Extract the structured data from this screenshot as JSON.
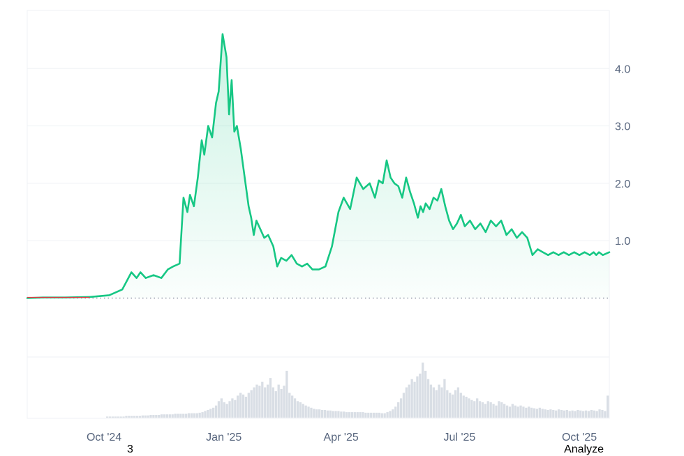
{
  "footer": {
    "left_text": "3",
    "right_text": "Analyze"
  },
  "chart_data": {
    "type": "area",
    "title": "",
    "xlabel": "",
    "ylabel": "",
    "x_tick_labels": [
      "Oct '24",
      "Jan '25",
      "Apr '25",
      "Jul '25",
      "Oct '25"
    ],
    "x_tick_dates": [
      "2024-10-01",
      "2025-01-01",
      "2025-04-01",
      "2025-07-01",
      "2025-10-01"
    ],
    "y_tick_labels": [
      "1.0",
      "2.0",
      "3.0",
      "4.0"
    ],
    "y_ticks": [
      1.0,
      2.0,
      3.0,
      4.0
    ],
    "ylim": [
      -0.9,
      4.9
    ],
    "xlim": [
      "2024-08-03",
      "2025-10-24"
    ],
    "baseline": 0.0,
    "grid": true,
    "colors": {
      "line": "#16c784",
      "below_baseline": "#ea3943",
      "grid": "#eff2f5",
      "baseline": "#777e90",
      "volume": "#d9dee5"
    },
    "series": [
      {
        "x": [
          "2024-08-03",
          "2024-08-15",
          "2024-09-01",
          "2024-09-20",
          "2024-10-05",
          "2024-10-15",
          "2024-10-22",
          "2024-10-26",
          "2024-10-29",
          "2024-11-02",
          "2024-11-08",
          "2024-11-14",
          "2024-11-19",
          "2024-11-23",
          "2024-11-28",
          "2024-12-01",
          "2024-12-04",
          "2024-12-06",
          "2024-12-09",
          "2024-12-12",
          "2024-12-15",
          "2024-12-17",
          "2024-12-20",
          "2024-12-23",
          "2024-12-26",
          "2024-12-28",
          "2024-12-31",
          "2025-01-03",
          "2025-01-05",
          "2025-01-07",
          "2025-01-09",
          "2025-01-11",
          "2025-01-14",
          "2025-01-17",
          "2025-01-20",
          "2025-01-22",
          "2025-01-24",
          "2025-01-26",
          "2025-01-29",
          "2025-02-01",
          "2025-02-04",
          "2025-02-08",
          "2025-02-11",
          "2025-02-14",
          "2025-02-18",
          "2025-02-22",
          "2025-02-26",
          "2025-03-02",
          "2025-03-06",
          "2025-03-10",
          "2025-03-15",
          "2025-03-20",
          "2025-03-25",
          "2025-03-30",
          "2025-04-03",
          "2025-04-08",
          "2025-04-13",
          "2025-04-18",
          "2025-04-23",
          "2025-04-27",
          "2025-04-30",
          "2025-05-03",
          "2025-05-06",
          "2025-05-09",
          "2025-05-12",
          "2025-05-15",
          "2025-05-18",
          "2025-05-21",
          "2025-05-24",
          "2025-05-27",
          "2025-05-30",
          "2025-06-01",
          "2025-06-03",
          "2025-06-05",
          "2025-06-08",
          "2025-06-11",
          "2025-06-14",
          "2025-06-17",
          "2025-06-20",
          "2025-06-23",
          "2025-06-26",
          "2025-06-29",
          "2025-07-02",
          "2025-07-05",
          "2025-07-09",
          "2025-07-13",
          "2025-07-17",
          "2025-07-21",
          "2025-07-25",
          "2025-07-29",
          "2025-08-02",
          "2025-08-06",
          "2025-08-10",
          "2025-08-14",
          "2025-08-18",
          "2025-08-22",
          "2025-08-26",
          "2025-08-30",
          "2025-09-03",
          "2025-09-07",
          "2025-09-11",
          "2025-09-15",
          "2025-09-19",
          "2025-09-23",
          "2025-09-27",
          "2025-10-01",
          "2025-10-05",
          "2025-10-09",
          "2025-10-12",
          "2025-10-14",
          "2025-10-16",
          "2025-10-19",
          "2025-10-24"
        ],
        "y": [
          0.0,
          0.01,
          0.01,
          0.02,
          0.05,
          0.15,
          0.45,
          0.35,
          0.45,
          0.35,
          0.4,
          0.35,
          0.5,
          0.55,
          0.6,
          1.75,
          1.5,
          1.8,
          1.6,
          2.1,
          2.75,
          2.5,
          3.0,
          2.8,
          3.4,
          3.6,
          4.6,
          4.2,
          3.2,
          3.8,
          2.9,
          3.0,
          2.6,
          2.1,
          1.6,
          1.4,
          1.1,
          1.35,
          1.2,
          1.05,
          1.1,
          0.9,
          0.55,
          0.7,
          0.65,
          0.75,
          0.6,
          0.55,
          0.6,
          0.5,
          0.5,
          0.55,
          0.9,
          1.5,
          1.75,
          1.55,
          2.1,
          1.9,
          2.0,
          1.75,
          2.05,
          2.0,
          2.4,
          2.1,
          2.0,
          1.95,
          1.75,
          2.1,
          1.85,
          1.65,
          1.4,
          1.6,
          1.5,
          1.65,
          1.55,
          1.75,
          1.7,
          1.9,
          1.6,
          1.35,
          1.2,
          1.3,
          1.45,
          1.25,
          1.35,
          1.2,
          1.3,
          1.15,
          1.35,
          1.25,
          1.35,
          1.1,
          1.2,
          1.05,
          1.15,
          1.05,
          0.75,
          0.85,
          0.8,
          0.75,
          0.8,
          0.75,
          0.8,
          0.75,
          0.8,
          0.75,
          0.8,
          0.75,
          0.8,
          0.75,
          0.8,
          0.75,
          0.8
        ]
      }
    ],
    "volume_shape": [
      0,
      0,
      0,
      0,
      0,
      0,
      0,
      0,
      0,
      0,
      0,
      0,
      0,
      0,
      0,
      0,
      0,
      0,
      0,
      0,
      0,
      0,
      0,
      0,
      0,
      0,
      0,
      0,
      0,
      0.02,
      0.02,
      0.02,
      0.02,
      0.02,
      0.02,
      0.02,
      0.03,
      0.03,
      0.03,
      0.03,
      0.03,
      0.03,
      0.04,
      0.04,
      0.04,
      0.05,
      0.05,
      0.05,
      0.05,
      0.06,
      0.06,
      0.06,
      0.06,
      0.06,
      0.07,
      0.07,
      0.07,
      0.07,
      0.07,
      0.08,
      0.08,
      0.08,
      0.08,
      0.09,
      0.1,
      0.12,
      0.14,
      0.16,
      0.18,
      0.22,
      0.3,
      0.35,
      0.28,
      0.25,
      0.3,
      0.35,
      0.32,
      0.4,
      0.45,
      0.42,
      0.38,
      0.45,
      0.5,
      0.55,
      0.6,
      0.58,
      0.65,
      0.55,
      0.6,
      0.72,
      0.55,
      0.48,
      0.6,
      0.52,
      0.58,
      0.85,
      0.45,
      0.4,
      0.35,
      0.3,
      0.28,
      0.25,
      0.22,
      0.2,
      0.18,
      0.16,
      0.15,
      0.15,
      0.14,
      0.14,
      0.13,
      0.13,
      0.12,
      0.12,
      0.12,
      0.11,
      0.11,
      0.1,
      0.1,
      0.1,
      0.1,
      0.1,
      0.1,
      0.1,
      0.09,
      0.09,
      0.09,
      0.09,
      0.09,
      0.09,
      0.08,
      0.08,
      0.1,
      0.12,
      0.15,
      0.2,
      0.28,
      0.35,
      0.45,
      0.55,
      0.6,
      0.7,
      0.65,
      0.75,
      0.8,
      1.0,
      0.85,
      0.7,
      0.6,
      0.55,
      0.5,
      0.6,
      0.55,
      0.7,
      0.5,
      0.45,
      0.42,
      0.5,
      0.55,
      0.45,
      0.4,
      0.38,
      0.35,
      0.32,
      0.3,
      0.35,
      0.3,
      0.28,
      0.25,
      0.3,
      0.28,
      0.25,
      0.22,
      0.3,
      0.28,
      0.25,
      0.22,
      0.2,
      0.25,
      0.22,
      0.2,
      0.22,
      0.2,
      0.18,
      0.2,
      0.18,
      0.17,
      0.16,
      0.18,
      0.16,
      0.15,
      0.14,
      0.15,
      0.14,
      0.13,
      0.15,
      0.14,
      0.13,
      0.14,
      0.12,
      0.13,
      0.12,
      0.14,
      0.13,
      0.12,
      0.13,
      0.12,
      0.14,
      0.13,
      0.12,
      0.15,
      0.14,
      0.12,
      0.4
    ]
  }
}
